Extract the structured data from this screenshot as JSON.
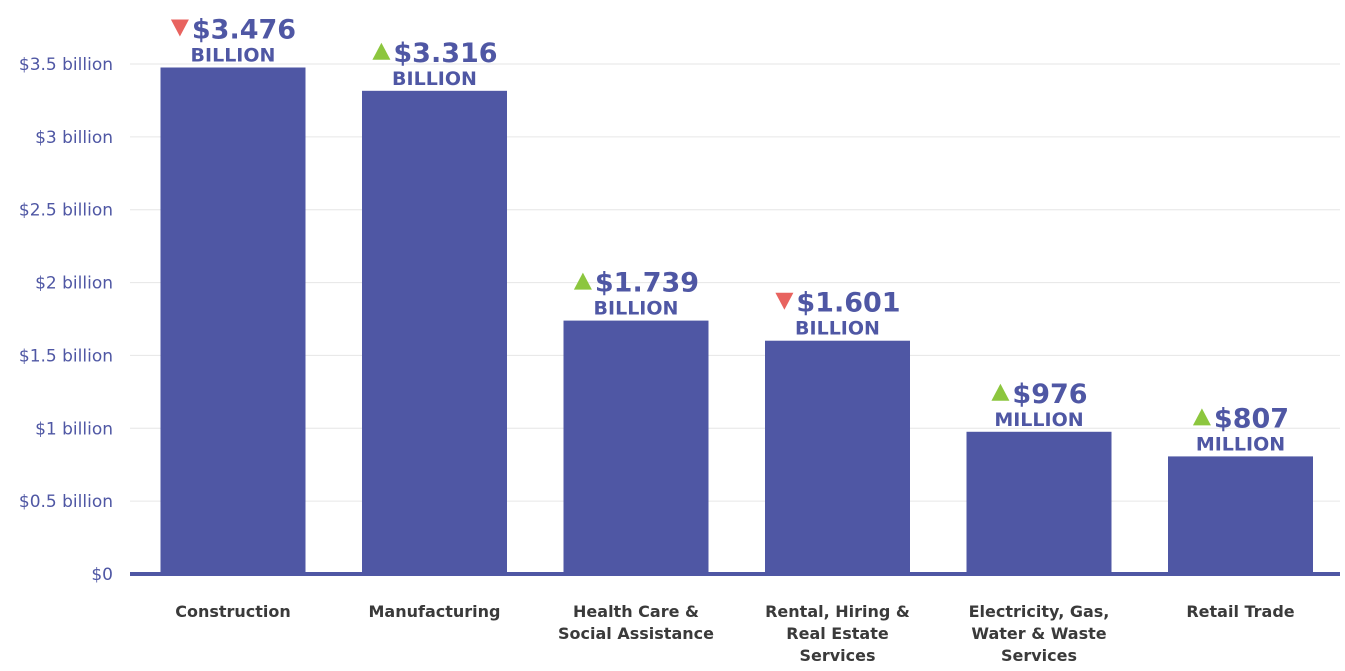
{
  "chart_data": {
    "type": "bar",
    "categories": [
      [
        "Construction"
      ],
      [
        "Manufacturing"
      ],
      [
        "Health Care &",
        "Social Assistance"
      ],
      [
        "Rental, Hiring &",
        "Real Estate",
        "Services"
      ],
      [
        "Electricity, Gas,",
        "Water & Waste",
        "Services"
      ],
      [
        "Retail Trade"
      ]
    ],
    "values": [
      3.476,
      3.316,
      1.739,
      1.601,
      0.976,
      0.807
    ],
    "value_unit": "billion",
    "data_labels": [
      {
        "value": "$3.476",
        "unit": "BILLION",
        "trend": "down"
      },
      {
        "value": "$3.316",
        "unit": "BILLION",
        "trend": "up"
      },
      {
        "value": "$1.739",
        "unit": "BILLION",
        "trend": "up"
      },
      {
        "value": "$1.601",
        "unit": "BILLION",
        "trend": "down"
      },
      {
        "value": "$976",
        "unit": "MILLION",
        "trend": "up"
      },
      {
        "value": "$807",
        "unit": "MILLION",
        "trend": "up"
      }
    ],
    "y_ticks": [
      {
        "value": 0,
        "label": "$0"
      },
      {
        "value": 0.5,
        "label": "$0.5 billion"
      },
      {
        "value": 1,
        "label": "$1 billion"
      },
      {
        "value": 1.5,
        "label": "$1.5 billion"
      },
      {
        "value": 2,
        "label": "$2 billion"
      },
      {
        "value": 2.5,
        "label": "$2.5 billion"
      },
      {
        "value": 3,
        "label": "$3 billion"
      },
      {
        "value": 3.5,
        "label": "$3.5 billion"
      }
    ],
    "ylim": [
      0,
      3.5
    ],
    "title": "",
    "xlabel": "",
    "ylabel": "",
    "grid": true,
    "legend": "none",
    "colors": {
      "bar": "#4f57a4",
      "axis": "#4f57a4",
      "grid": "#e6e6e6",
      "trend_up": "#8cc63e",
      "trend_down": "#e8635f",
      "label_text": "#4f57a4",
      "category_text": "#3a3a3a"
    }
  }
}
